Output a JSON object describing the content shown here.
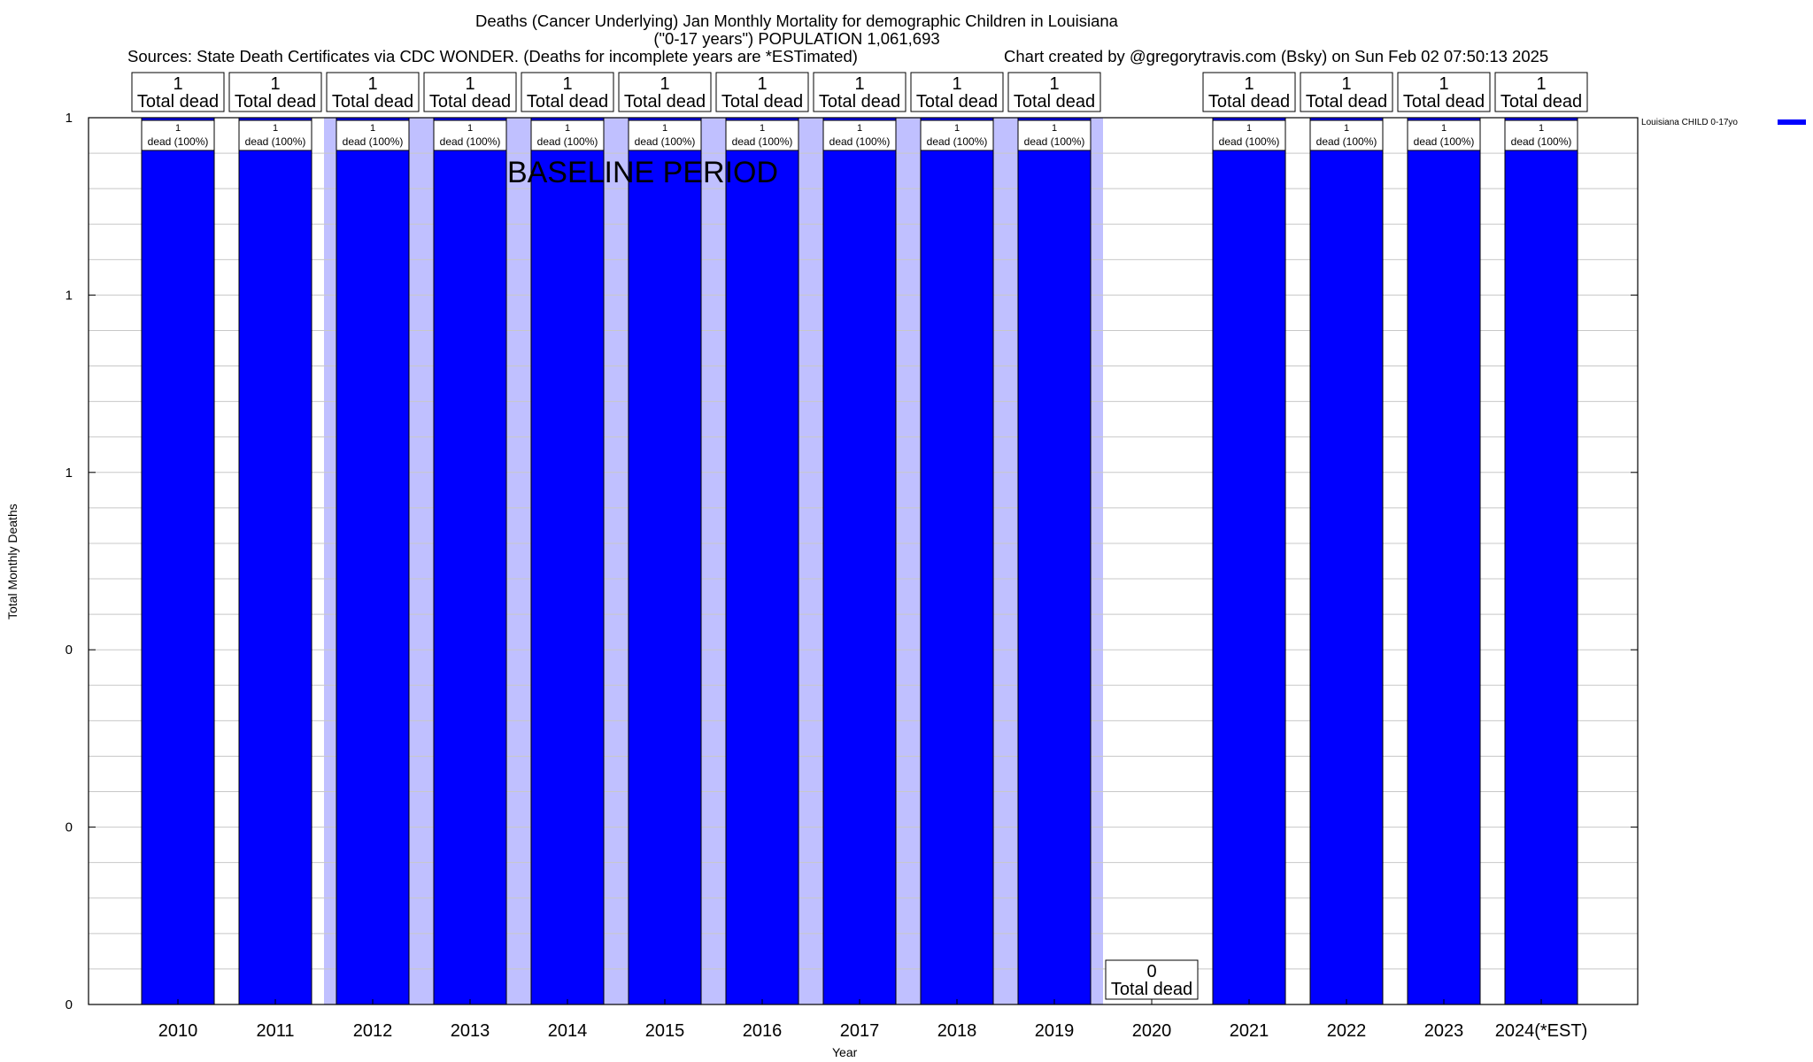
{
  "header": {
    "title_line1": "Deaths (Cancer Underlying) Jan Monthly Mortality for demographic Children in Louisiana",
    "title_line2": "(\"0-17 years\") POPULATION 1,061,693",
    "sources": "Sources: State Death Certificates via CDC WONDER. (Deaths for incomplete years are *ESTimated)",
    "credit": "Chart created by @gregorytravis.com (Bsky) on Sun Feb 02 07:50:13 2025"
  },
  "chart_data": {
    "type": "bar",
    "xlabel": "Year",
    "ylabel": "Total Monthly Deaths",
    "ylim": [
      0,
      1
    ],
    "ytick_labels": [
      "0",
      "0",
      "0",
      "1",
      "1",
      "1"
    ],
    "grid": true,
    "annotation": "BASELINE PERIOD",
    "baseline_years": [
      "2012",
      "2013",
      "2014",
      "2015",
      "2016",
      "2017",
      "2018",
      "2019"
    ],
    "categories": [
      "2010",
      "2011",
      "2012",
      "2013",
      "2014",
      "2015",
      "2016",
      "2017",
      "2018",
      "2019",
      "2020",
      "2021",
      "2022",
      "2023",
      "2024(*EST)"
    ],
    "series": [
      {
        "name": "Louisiana CHILD 0-17yo",
        "color": "#0000ff",
        "values": [
          1,
          1,
          1,
          1,
          1,
          1,
          1,
          1,
          1,
          1,
          0,
          1,
          1,
          1,
          1
        ]
      }
    ],
    "total_labels": [
      {
        "count": "1",
        "text": "Total dead"
      },
      {
        "count": "1",
        "text": "Total dead"
      },
      {
        "count": "1",
        "text": "Total dead"
      },
      {
        "count": "1",
        "text": "Total dead"
      },
      {
        "count": "1",
        "text": "Total dead"
      },
      {
        "count": "1",
        "text": "Total dead"
      },
      {
        "count": "1",
        "text": "Total dead"
      },
      {
        "count": "1",
        "text": "Total dead"
      },
      {
        "count": "1",
        "text": "Total dead"
      },
      {
        "count": "1",
        "text": "Total dead"
      },
      {
        "count": "0",
        "text": "Total dead"
      },
      {
        "count": "1",
        "text": "Total dead"
      },
      {
        "count": "1",
        "text": "Total dead"
      },
      {
        "count": "1",
        "text": "Total dead"
      },
      {
        "count": "1",
        "text": "Total dead"
      }
    ],
    "inner_labels": [
      {
        "count": "1",
        "text": "dead (100%)"
      },
      {
        "count": "1",
        "text": "dead (100%)"
      },
      {
        "count": "1",
        "text": "dead (100%)"
      },
      {
        "count": "1",
        "text": "dead (100%)"
      },
      {
        "count": "1",
        "text": "dead (100%)"
      },
      {
        "count": "1",
        "text": "dead (100%)"
      },
      {
        "count": "1",
        "text": "dead (100%)"
      },
      {
        "count": "1",
        "text": "dead (100%)"
      },
      {
        "count": "1",
        "text": "dead (100%)"
      },
      {
        "count": "1",
        "text": "dead (100%)"
      },
      null,
      {
        "count": "1",
        "text": "dead (100%)"
      },
      {
        "count": "1",
        "text": "dead (100%)"
      },
      {
        "count": "1",
        "text": "dead (100%)"
      },
      {
        "count": "1",
        "text": "dead (100%)"
      }
    ],
    "colors": {
      "bar": "#0000ff",
      "baseline_band": "#c0c0ff",
      "grid": "#c8c8c8"
    }
  }
}
